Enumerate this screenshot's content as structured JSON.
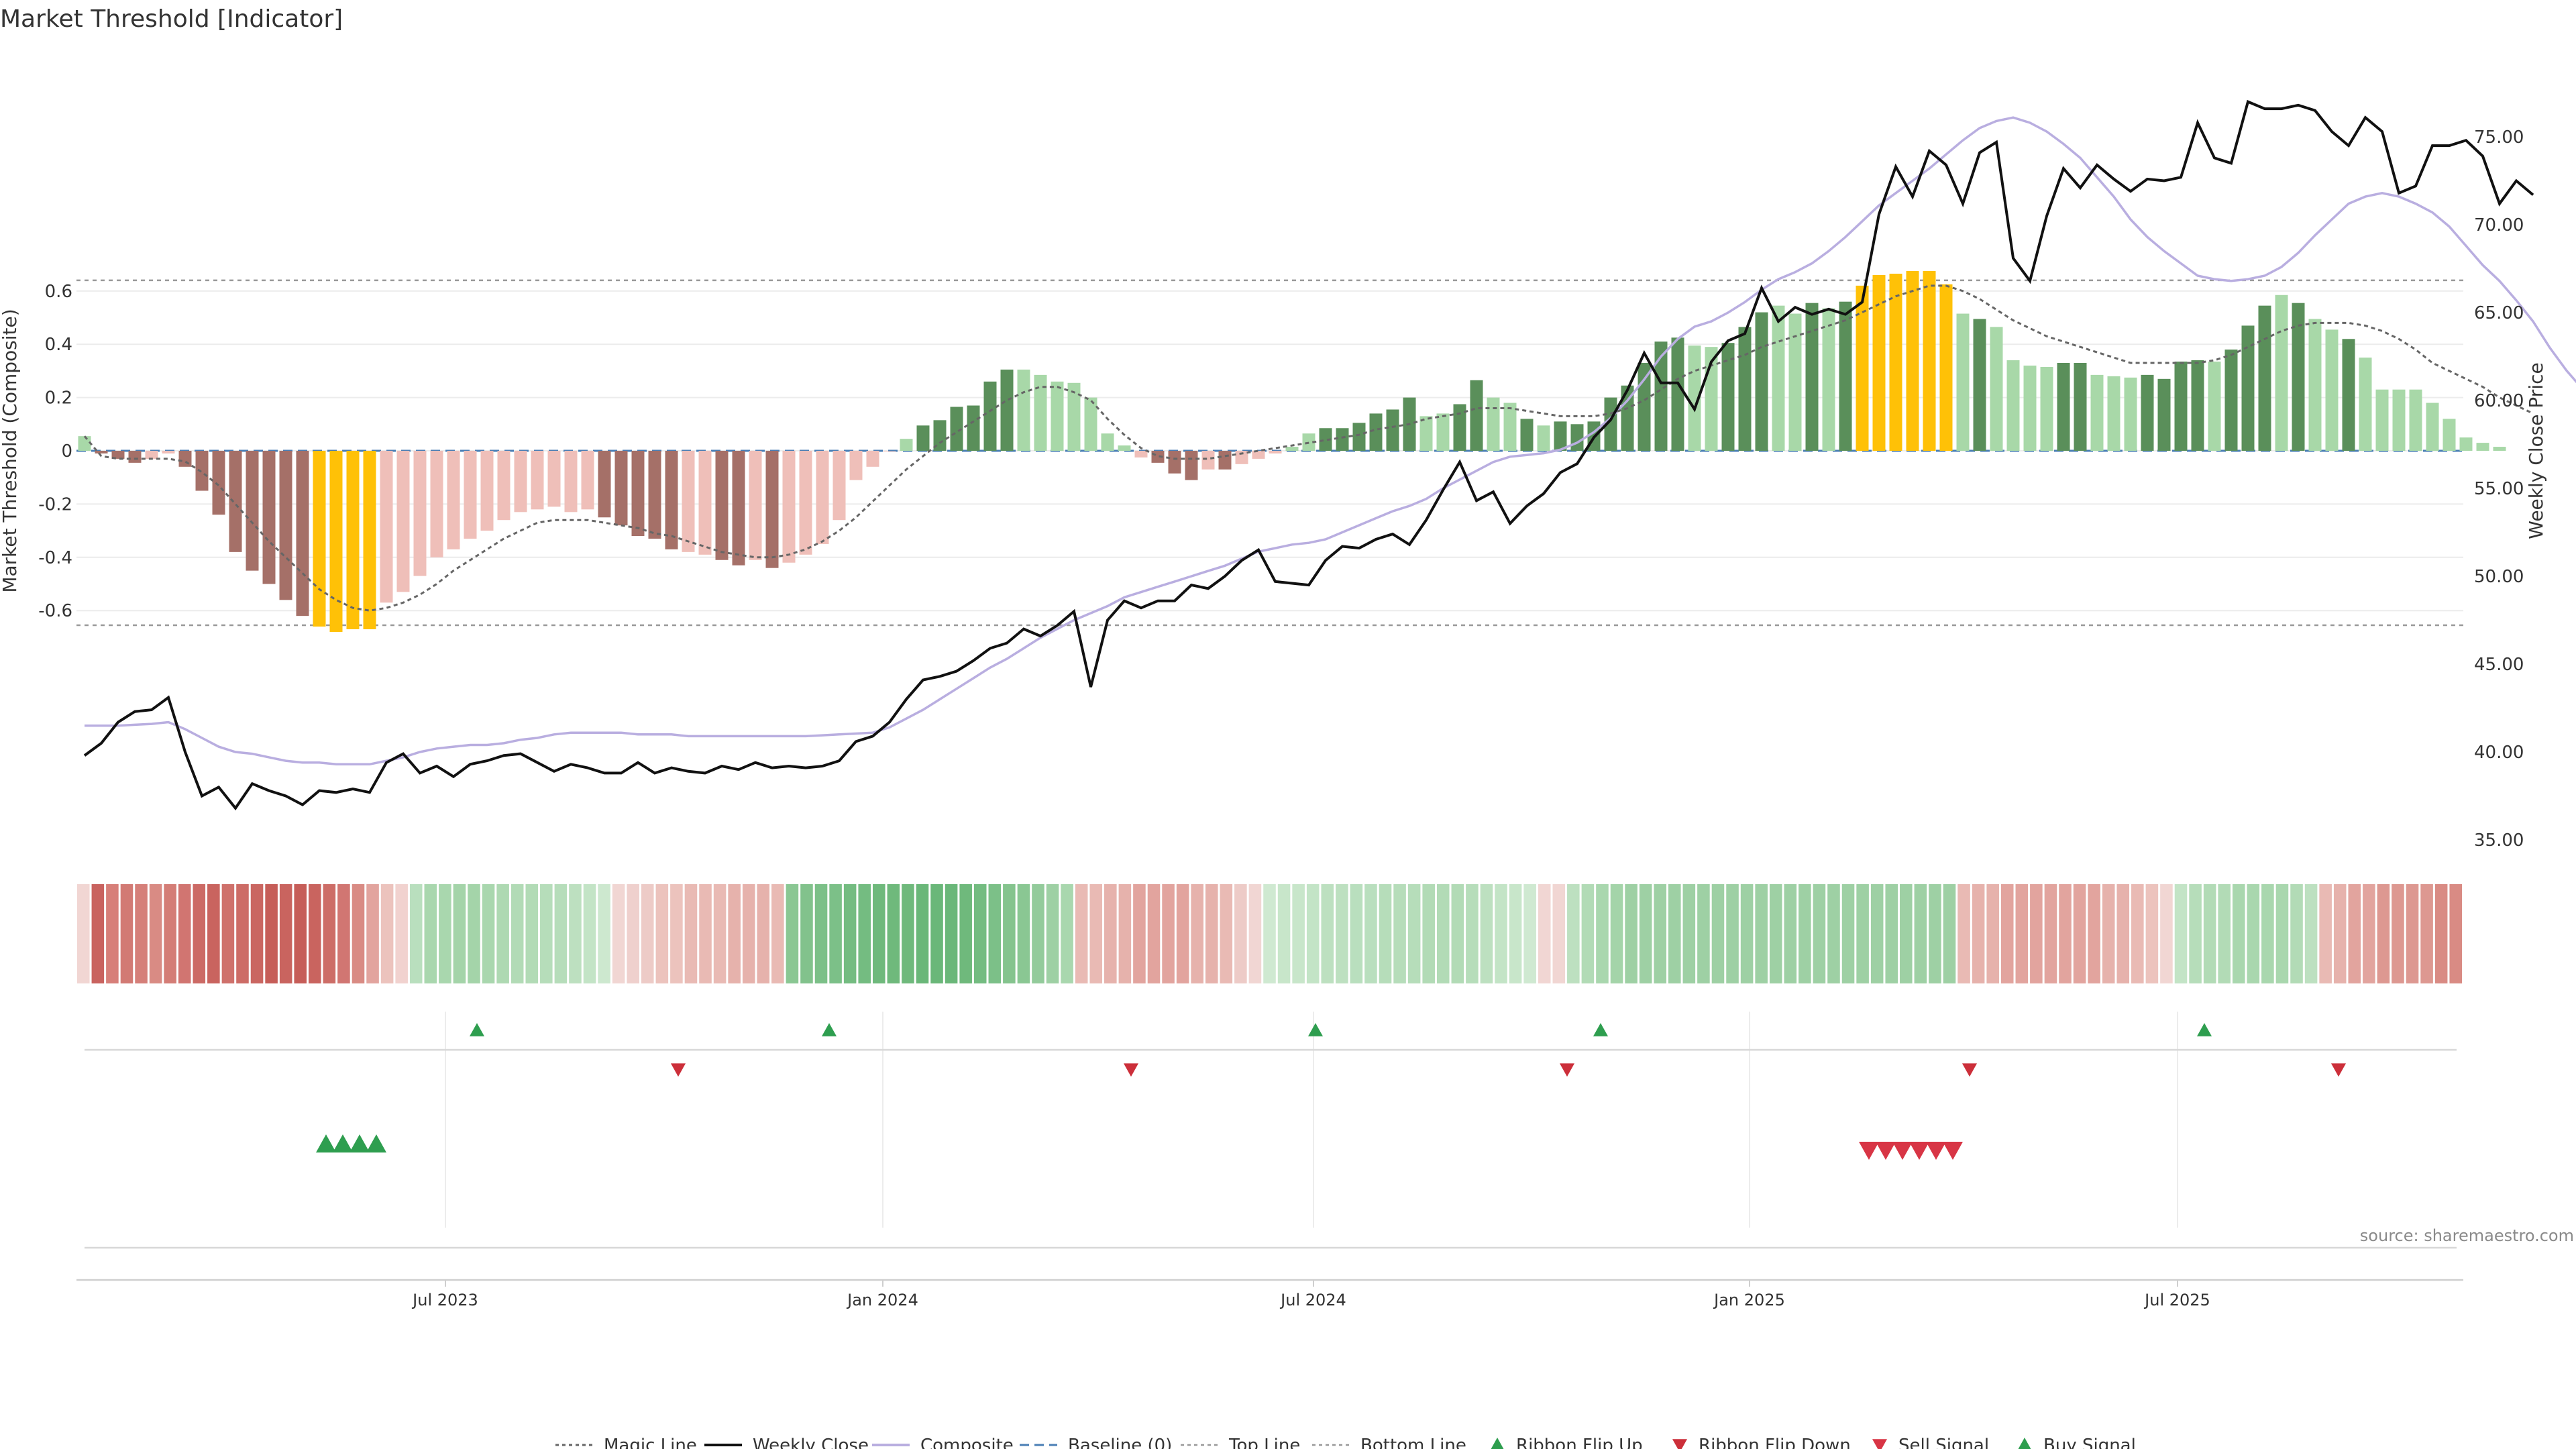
{
  "colors": {
    "dark_green": "#5a8f5a",
    "light_green": "#a8d8a8",
    "dark_red": "#a57068",
    "light_red": "#efbfb9",
    "extreme": "#ffc107",
    "magic_line": "#666666",
    "weekly_close": "#111111",
    "composite": "#b9aee0",
    "baseline": "#4a7fb5",
    "buy": "#2e9e4f",
    "sell": "#d83545"
  },
  "chart_data": {
    "type": "bar",
    "title": "Market Threshold [Indicator]",
    "ylabel_left": "Market Threshold (Composite)",
    "ylabel_right": "Weekly Close Price",
    "left_ticks": [
      "0.6",
      "0.4",
      "0.2",
      "0",
      "-0.2",
      "-0.4",
      "-0.6"
    ],
    "right_ticks": [
      "75.00",
      "70.00",
      "65.00",
      "60.00",
      "55.00",
      "50.00",
      "45.00",
      "40.00",
      "35.00"
    ],
    "x_ticks": [
      "Jul 2023",
      "Jan 2024",
      "Jul 2024",
      "Jan 2025",
      "Jul 2025"
    ],
    "ylim_left": [
      -0.7,
      0.75
    ],
    "ylim_right": [
      34,
      77
    ],
    "top_line": 0.64,
    "bottom_line": -0.655,
    "baseline": 0,
    "bars": [
      0.055,
      -0.01,
      -0.03,
      -0.045,
      -0.03,
      -0.01,
      -0.06,
      -0.15,
      -0.24,
      -0.38,
      -0.45,
      -0.5,
      -0.56,
      -0.62,
      -0.66,
      -0.68,
      -0.67,
      -0.67,
      -0.57,
      -0.53,
      -0.47,
      -0.4,
      -0.37,
      -0.33,
      -0.3,
      -0.26,
      -0.23,
      -0.22,
      -0.21,
      -0.23,
      -0.22,
      -0.25,
      -0.28,
      -0.32,
      -0.33,
      -0.37,
      -0.38,
      -0.39,
      -0.41,
      -0.43,
      -0.41,
      -0.44,
      -0.42,
      -0.39,
      -0.35,
      -0.26,
      -0.11,
      -0.06,
      0,
      0.045,
      0.095,
      0.115,
      0.165,
      0.17,
      0.26,
      0.305,
      0.305,
      0.285,
      0.26,
      0.255,
      0.2,
      0.065,
      0.02,
      -0.025,
      -0.045,
      -0.085,
      -0.11,
      -0.07,
      -0.07,
      -0.05,
      -0.03,
      -0.01,
      0.015,
      0.065,
      0.085,
      0.085,
      0.105,
      0.14,
      0.155,
      0.2,
      0.13,
      0.14,
      0.175,
      0.265,
      0.2,
      0.18,
      0.12,
      0.095,
      0.11,
      0.1,
      0.11,
      0.2,
      0.245,
      0.33,
      0.41,
      0.425,
      0.395,
      0.39,
      0.405,
      0.465,
      0.52,
      0.545,
      0.515,
      0.555,
      0.535,
      0.56,
      0.62,
      0.66,
      0.665,
      0.675,
      0.675,
      0.625,
      0.515,
      0.495,
      0.465,
      0.34,
      0.32,
      0.315,
      0.33,
      0.33,
      0.285,
      0.28,
      0.275,
      0.285,
      0.27,
      0.335,
      0.34,
      0.335,
      0.38,
      0.47,
      0.545,
      0.585,
      0.555,
      0.495,
      0.455,
      0.42,
      0.35,
      0.23,
      0.23,
      0.23,
      0.18,
      0.12,
      0.05,
      0.03,
      0.015
    ],
    "bar_class": [
      "L",
      "R",
      "R",
      "R",
      "r",
      "r",
      "R",
      "R",
      "R",
      "R",
      "R",
      "R",
      "R",
      "R",
      "Y",
      "Y",
      "Y",
      "Y",
      "r",
      "r",
      "r",
      "r",
      "r",
      "r",
      "r",
      "r",
      "r",
      "r",
      "r",
      "r",
      "r",
      "R",
      "R",
      "R",
      "R",
      "R",
      "r",
      "r",
      "R",
      "R",
      "r",
      "R",
      "r",
      "r",
      "r",
      "r",
      "r",
      "r",
      "r",
      "L",
      "G",
      "G",
      "G",
      "G",
      "G",
      "G",
      "L",
      "L",
      "L",
      "L",
      "L",
      "L",
      "L",
      "r",
      "R",
      "R",
      "R",
      "r",
      "R",
      "r",
      "r",
      "r",
      "L",
      "L",
      "G",
      "G",
      "G",
      "G",
      "G",
      "G",
      "L",
      "L",
      "G",
      "G",
      "L",
      "L",
      "G",
      "L",
      "G",
      "G",
      "G",
      "G",
      "G",
      "G",
      "G",
      "G",
      "L",
      "L",
      "G",
      "G",
      "G",
      "L",
      "L",
      "G",
      "L",
      "G",
      "Y",
      "Y",
      "Y",
      "Y",
      "Y",
      "Y",
      "L",
      "G",
      "L",
      "L",
      "L",
      "L",
      "G",
      "G",
      "L",
      "L",
      "L",
      "G",
      "G",
      "G",
      "G",
      "L",
      "G",
      "G",
      "G",
      "L",
      "G",
      "L",
      "L",
      "G",
      "L",
      "L",
      "L",
      "L",
      "L"
    ],
    "series": [
      {
        "name": "Weekly Close",
        "values": [
          39.8,
          40.5,
          41.7,
          42.3,
          42.4,
          43.1,
          40,
          37.5,
          38,
          36.8,
          38.2,
          37.8,
          37.5,
          37,
          37.8,
          37.7,
          37.9,
          37.7,
          39.4,
          39.9,
          38.8,
          39.2,
          38.6,
          39.3,
          39.5,
          39.8,
          39.9,
          39.4,
          38.9,
          39.3,
          39.1,
          38.8,
          38.8,
          39.4,
          38.8,
          39.1,
          38.9,
          38.8,
          39.2,
          39,
          39.4,
          39.1,
          39.2,
          39.1,
          39.2,
          39.5,
          40.6,
          40.9,
          41.7,
          43,
          44.1,
          44.3,
          44.6,
          45.2,
          45.9,
          46.2,
          47,
          46.6,
          47.2,
          48,
          43.7,
          47.5,
          48.6,
          48.2,
          48.6,
          48.6,
          49.5,
          49.3,
          50,
          50.9,
          51.5,
          49.7,
          49.6,
          49.5,
          50.9,
          51.7,
          51.6,
          52.1,
          52.4,
          51.8,
          53.2,
          54.9,
          56.5,
          54.3,
          54.8,
          53,
          54,
          54.7,
          55.9,
          56.4,
          57.9,
          58.9,
          60.6,
          62.7,
          61,
          61,
          59.5,
          62.2,
          63.4,
          63.8,
          66.4,
          64.5,
          65.3,
          64.9,
          65.2,
          64.9,
          65.6,
          70.6,
          73.3,
          71.6,
          74.2,
          73.4,
          71.2,
          74.1,
          74.7,
          68.1,
          66.8,
          70.5,
          73.2,
          72.1,
          73.4,
          72.6,
          71.9,
          72.6,
          72.5,
          72.7,
          75.8,
          73.8,
          73.5,
          77,
          76.6,
          76.6,
          76.8,
          76.5,
          75.3,
          74.5,
          76.1,
          75.3,
          71.8,
          72.2,
          74.5,
          74.5,
          74.8,
          73.9,
          71.2,
          72.5,
          71.7
        ]
      },
      {
        "name": "Composite",
        "values": [
          41.5,
          41.5,
          41.5,
          41.55,
          41.6,
          41.7,
          41.3,
          40.8,
          40.3,
          40,
          39.9,
          39.7,
          39.5,
          39.4,
          39.4,
          39.3,
          39.3,
          39.3,
          39.5,
          39.7,
          40,
          40.2,
          40.3,
          40.4,
          40.4,
          40.5,
          40.7,
          40.8,
          41,
          41.1,
          41.1,
          41.1,
          41.1,
          41,
          41,
          41,
          40.9,
          40.9,
          40.9,
          40.9,
          40.9,
          40.9,
          40.9,
          40.9,
          40.95,
          41,
          41.05,
          41.1,
          41.4,
          41.9,
          42.4,
          43,
          43.6,
          44.2,
          44.8,
          45.3,
          45.9,
          46.5,
          47,
          47.5,
          47.9,
          48.3,
          48.8,
          49.1,
          49.4,
          49.7,
          50,
          50.3,
          50.6,
          51,
          51.4,
          51.6,
          51.8,
          51.9,
          52.1,
          52.5,
          52.9,
          53.3,
          53.7,
          54,
          54.4,
          55,
          55.5,
          56,
          56.5,
          56.8,
          56.9,
          57,
          57.2,
          57.6,
          58.2,
          59,
          60,
          61.2,
          62.5,
          63.5,
          64.2,
          64.5,
          65,
          65.6,
          66.3,
          66.9,
          67.3,
          67.8,
          68.5,
          69.3,
          70.2,
          71.1,
          71.8,
          72.5,
          73.2,
          74,
          74.8,
          75.5,
          75.9,
          76.1,
          75.8,
          75.3,
          74.6,
          73.8,
          72.7,
          71.6,
          70.3,
          69.3,
          68.5,
          67.8,
          67.1,
          66.9,
          66.8,
          66.9,
          67.1,
          67.6,
          68.4,
          69.4,
          70.3,
          71.2,
          71.6,
          71.8,
          71.6,
          71.2,
          70.7,
          69.9,
          68.8,
          67.7,
          66.8,
          65.7,
          64.5,
          63,
          61.7,
          60.6
        ]
      },
      {
        "name": "Magic Line",
        "values": [
          0.055,
          -0.02,
          -0.03,
          -0.03,
          -0.03,
          -0.03,
          -0.04,
          -0.08,
          -0.13,
          -0.2,
          -0.27,
          -0.34,
          -0.4,
          -0.46,
          -0.52,
          -0.56,
          -0.59,
          -0.6,
          -0.59,
          -0.57,
          -0.54,
          -0.5,
          -0.45,
          -0.41,
          -0.37,
          -0.33,
          -0.3,
          -0.27,
          -0.26,
          -0.26,
          -0.26,
          -0.27,
          -0.28,
          -0.29,
          -0.31,
          -0.32,
          -0.34,
          -0.36,
          -0.38,
          -0.39,
          -0.4,
          -0.4,
          -0.39,
          -0.37,
          -0.34,
          -0.3,
          -0.25,
          -0.19,
          -0.13,
          -0.07,
          -0.02,
          0.03,
          0.07,
          0.11,
          0.15,
          0.19,
          0.22,
          0.24,
          0.24,
          0.22,
          0.19,
          0.12,
          0.06,
          0.01,
          -0.02,
          -0.03,
          -0.03,
          -0.03,
          -0.02,
          -0.01,
          0,
          0.01,
          0.02,
          0.03,
          0.04,
          0.05,
          0.06,
          0.08,
          0.09,
          0.1,
          0.12,
          0.13,
          0.14,
          0.16,
          0.16,
          0.16,
          0.15,
          0.14,
          0.13,
          0.13,
          0.13,
          0.14,
          0.16,
          0.19,
          0.23,
          0.27,
          0.3,
          0.32,
          0.34,
          0.36,
          0.39,
          0.41,
          0.43,
          0.45,
          0.47,
          0.49,
          0.52,
          0.55,
          0.58,
          0.6,
          0.62,
          0.62,
          0.6,
          0.57,
          0.53,
          0.49,
          0.46,
          0.43,
          0.41,
          0.39,
          0.37,
          0.35,
          0.33,
          0.33,
          0.33,
          0.33,
          0.33,
          0.34,
          0.36,
          0.39,
          0.42,
          0.45,
          0.47,
          0.48,
          0.48,
          0.48,
          0.47,
          0.45,
          0.42,
          0.38,
          0.33,
          0.3,
          0.27,
          0.24,
          0.2,
          0.17,
          0.14
        ]
      }
    ],
    "ribbon_colors": [
      "#f1d6d3",
      "#c9635f",
      "#d77f79",
      "#d27a74",
      "#d57f79",
      "#d98b84",
      "#d47d76",
      "#d17571",
      "#cc6a65",
      "#c9645f",
      "#cf716b",
      "#cd6c66",
      "#ca6661",
      "#c65d58",
      "#c9645f",
      "#c65d58",
      "#c9645f",
      "#cd6d67",
      "#d17672",
      "#d98b84",
      "#e2a49e",
      "#ecc3bd",
      "#f1d2cf",
      "#b9dfbe",
      "#a9d7ae",
      "#a9d7ae",
      "#a4d4a9",
      "#a4d4a9",
      "#a9d7ae",
      "#aed9b2",
      "#b2dbb6",
      "#b2dbb6",
      "#b6ddba",
      "#b6ddba",
      "#bde0c0",
      "#c3e4c6",
      "#cde8cf",
      "#f1d6d3",
      "#efd0cd",
      "#edcbc7",
      "#ecc3bd",
      "#ecc3bd",
      "#e9bab4",
      "#e9bab4",
      "#e9bab4",
      "#e6b2ac",
      "#e6b2ac",
      "#e6b2ac",
      "#e9bab4",
      "#8ac793",
      "#82c28c",
      "#7cc088",
      "#7cc088",
      "#74bc81",
      "#74bc81",
      "#6fb97c",
      "#6fb97c",
      "#6fb97c",
      "#6ab779",
      "#6ab779",
      "#6ab779",
      "#6fb97c",
      "#74bc81",
      "#7cc088",
      "#85c48e",
      "#8ac793",
      "#93cb9b",
      "#9ed0a4",
      "#a9d7ae",
      "#e9bab4",
      "#e9bab4",
      "#e6b2ac",
      "#e6b2ac",
      "#e2a49e",
      "#e2a49e",
      "#e2a49e",
      "#e2a49e",
      "#e6b2ac",
      "#e6b2ac",
      "#e9bab4",
      "#edcbc7",
      "#f1d6d3",
      "#cfe9d1",
      "#c8e6ca",
      "#c8e6ca",
      "#c3e4c6",
      "#bde0c0",
      "#bde0c0",
      "#b9dfbe",
      "#b9dfbe",
      "#b6ddba",
      "#b6ddba",
      "#b6ddba",
      "#b2dbb6",
      "#b2dbb6",
      "#b2dbb6",
      "#b6ddba",
      "#bde0c0",
      "#c3e4c6",
      "#c8e6ca",
      "#cfe9d1",
      "#f1d6d3",
      "#f1d6d3",
      "#bde0c0",
      "#b2dbb6",
      "#a9d7ae",
      "#a4d4a9",
      "#9ed0a4",
      "#9ed0a4",
      "#9ed0a4",
      "#9ed0a4",
      "#9ed0a4",
      "#9ed0a4",
      "#9ed0a4",
      "#9ed0a4",
      "#9ed0a4",
      "#9ed0a4",
      "#9ed0a4",
      "#9ed0a4",
      "#9ed0a4",
      "#9ed0a4",
      "#9ed0a4",
      "#9ed0a4",
      "#9ed0a4",
      "#9ed0a4",
      "#9ed0a4",
      "#9ed0a4",
      "#9ed0a4",
      "#9ed0a4",
      "#9ed0a4",
      "#e9bab4",
      "#e6b2ac",
      "#e6b2ac",
      "#e2a49e",
      "#e2a49e",
      "#e2a49e",
      "#e2a49e",
      "#e2a49e",
      "#e2a49e",
      "#e2a49e",
      "#e6b2ac",
      "#e6b2ac",
      "#e9bab4",
      "#ecc3bd",
      "#f1d6d3",
      "#c3e4c6",
      "#b6ddba",
      "#b2dbb6",
      "#b2dbb6",
      "#a9d7ae",
      "#a9d7ae",
      "#a9d7ae",
      "#a9d7ae",
      "#b2dbb6",
      "#bde0c0",
      "#e9bab4",
      "#e6b2ac",
      "#e2a49e",
      "#e2a49e",
      "#dd9891",
      "#dd9891",
      "#dd9891",
      "#dd9891",
      "#d98b84",
      "#d98b84"
    ],
    "ribbon_flip_up": [
      23,
      44,
      73,
      90,
      126
    ],
    "ribbon_flip_down": [
      35,
      62,
      88,
      112,
      134
    ],
    "buy_signal": [
      14,
      15,
      16,
      17
    ],
    "sell_signal": [
      106,
      107,
      108,
      109,
      110,
      111
    ],
    "legend": [
      "Magic Line",
      "Weekly Close",
      "Composite",
      "Baseline (0)",
      "Top Line",
      "Bottom Line",
      "Ribbon Flip Up",
      "Ribbon Flip Down",
      "Sell Signal",
      "Buy Signal"
    ],
    "source": "source: sharemaestro.com"
  }
}
